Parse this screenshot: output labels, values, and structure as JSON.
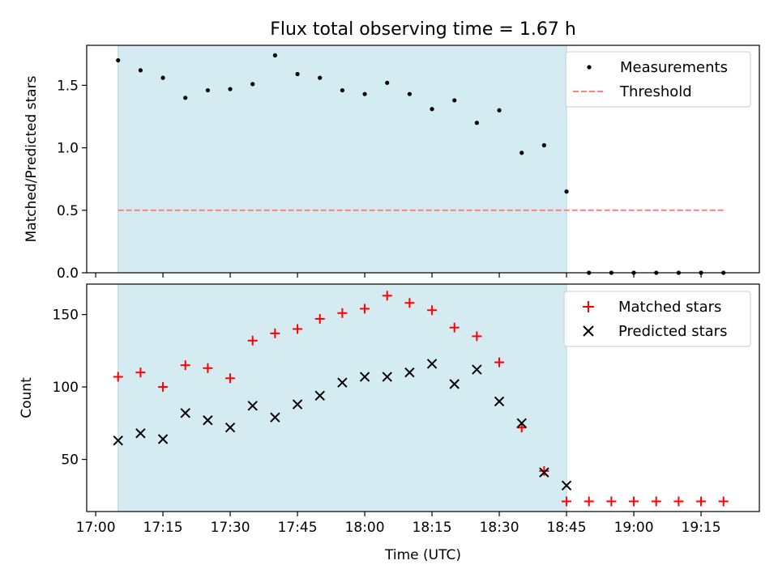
{
  "title": "Flux total observing time = 1.67 h",
  "colors": {
    "band": "#d4ebf1",
    "band_edge": "#add8e6",
    "measure": "#000000",
    "threshold": "#ff7f7f",
    "matched": "#ff0000",
    "predicted": "#000000"
  },
  "chart_data": [
    {
      "type": "scatter",
      "ylabel": "Matched/Predicted stars",
      "xlim": [
        "16:58",
        "19:28"
      ],
      "ylim": [
        0,
        1.82
      ],
      "yticks": [
        0.0,
        0.5,
        1.0,
        1.5
      ],
      "ytick_labels": [
        "0.0",
        "0.5",
        "1.0",
        "1.5"
      ],
      "shaded_span": [
        "17:05",
        "18:45"
      ],
      "legend_position": "upper right",
      "series": [
        {
          "name": "Measurements",
          "marker": "dot",
          "x": [
            "17:05",
            "17:10",
            "17:15",
            "17:20",
            "17:25",
            "17:30",
            "17:35",
            "17:40",
            "17:45",
            "17:50",
            "17:55",
            "18:00",
            "18:05",
            "18:10",
            "18:15",
            "18:20",
            "18:25",
            "18:30",
            "18:35",
            "18:40",
            "18:45",
            "18:50",
            "18:55",
            "19:00",
            "19:05",
            "19:10",
            "19:15",
            "19:20"
          ],
          "y": [
            1.7,
            1.62,
            1.56,
            1.4,
            1.46,
            1.47,
            1.51,
            1.74,
            1.59,
            1.56,
            1.46,
            1.43,
            1.52,
            1.43,
            1.31,
            1.38,
            1.2,
            1.3,
            0.96,
            1.02,
            0.65,
            0,
            0,
            0,
            0,
            0,
            0,
            0
          ]
        },
        {
          "name": "Threshold",
          "marker": "dashed-line",
          "x": [
            "17:05",
            "19:20"
          ],
          "y": [
            0.5,
            0.5
          ]
        }
      ]
    },
    {
      "type": "scatter",
      "xlabel": "Time (UTC)",
      "ylabel": "Count",
      "xlim": [
        "16:58",
        "19:28"
      ],
      "ylim": [
        14,
        171
      ],
      "yticks": [
        50,
        100,
        150
      ],
      "ytick_labels": [
        "50",
        "100",
        "150"
      ],
      "xticks": [
        "17:00",
        "17:15",
        "17:30",
        "17:45",
        "18:00",
        "18:15",
        "18:30",
        "18:45",
        "19:00",
        "19:15"
      ],
      "shaded_span": [
        "17:05",
        "18:45"
      ],
      "legend_position": "upper right",
      "series": [
        {
          "name": "Matched stars",
          "marker": "plus",
          "x": [
            "17:05",
            "17:10",
            "17:15",
            "17:20",
            "17:25",
            "17:30",
            "17:35",
            "17:40",
            "17:45",
            "17:50",
            "17:55",
            "18:00",
            "18:05",
            "18:10",
            "18:15",
            "18:20",
            "18:25",
            "18:30",
            "18:35",
            "18:40",
            "18:45",
            "18:50",
            "18:55",
            "19:00",
            "19:05",
            "19:10",
            "19:15",
            "19:20"
          ],
          "y": [
            107,
            110,
            100,
            115,
            113,
            106,
            132,
            137,
            140,
            147,
            151,
            154,
            163,
            158,
            153,
            141,
            135,
            117,
            72,
            42,
            21,
            21,
            21,
            21,
            21,
            21,
            21,
            21
          ]
        },
        {
          "name": "Predicted stars",
          "marker": "x",
          "x": [
            "17:05",
            "17:10",
            "17:15",
            "17:20",
            "17:25",
            "17:30",
            "17:35",
            "17:40",
            "17:45",
            "17:50",
            "17:55",
            "18:00",
            "18:05",
            "18:10",
            "18:15",
            "18:20",
            "18:25",
            "18:30",
            "18:35",
            "18:40",
            "18:45"
          ],
          "y": [
            63,
            68,
            64,
            82,
            77,
            72,
            87,
            79,
            88,
            94,
            103,
            107,
            107,
            110,
            116,
            102,
            112,
            90,
            75,
            41,
            32
          ]
        }
      ]
    }
  ]
}
